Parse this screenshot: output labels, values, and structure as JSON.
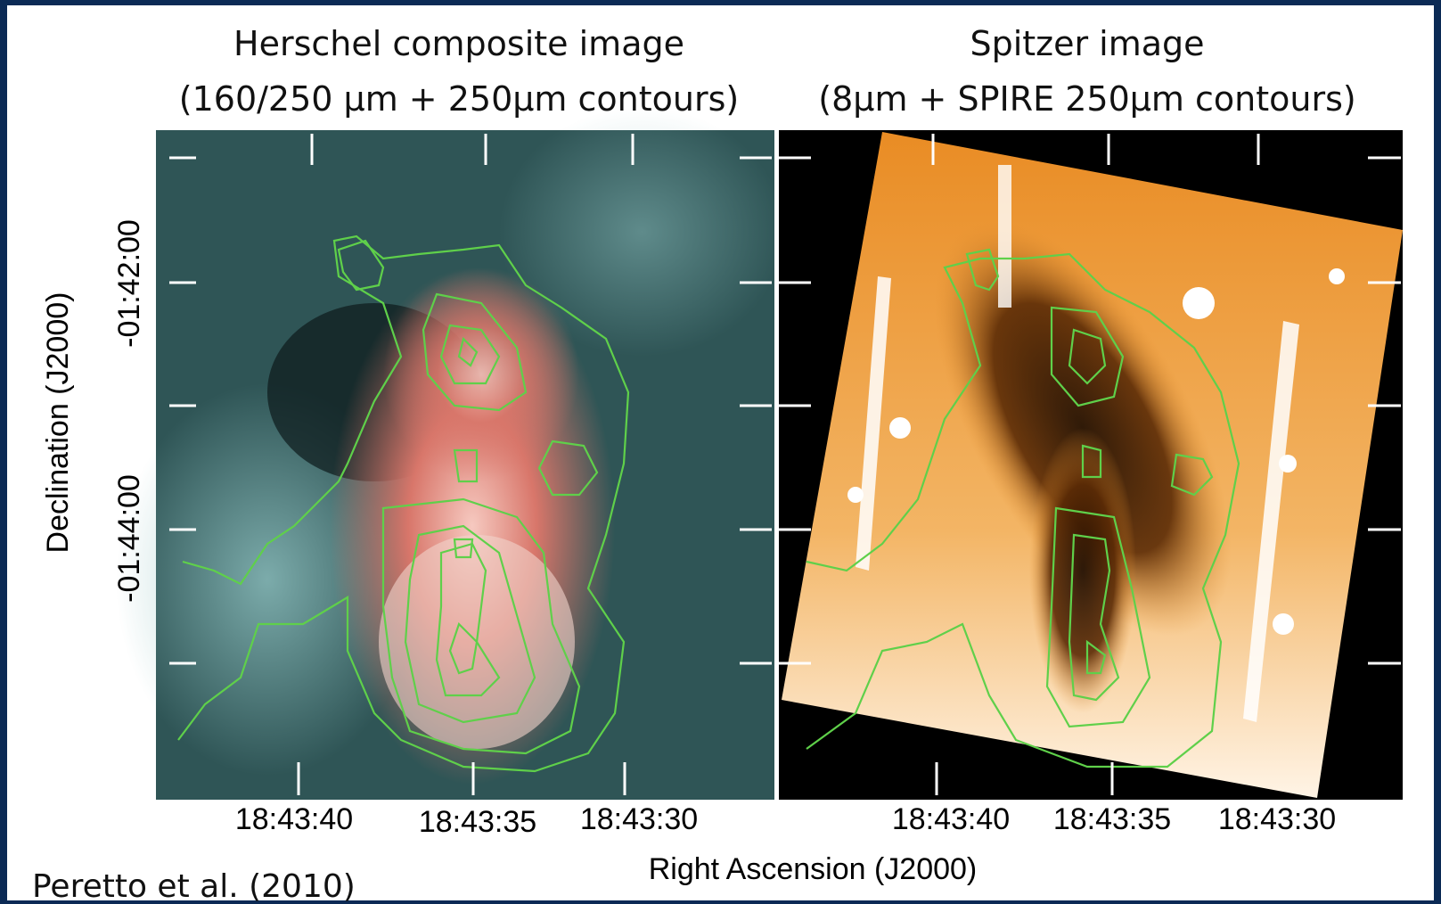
{
  "panels": [
    {
      "title": [
        "Herschel composite image",
        "(160/250 µm + 250µm contours)"
      ],
      "x_ticks": [
        "18:43:40",
        "18:43:35",
        "18:43:30"
      ]
    },
    {
      "title": [
        "Spitzer image",
        "(8µm + SPIRE 250µm contours)"
      ],
      "x_ticks": [
        "18:43:40",
        "18:43:35",
        "18:43:30"
      ]
    }
  ],
  "y_axis": {
    "label": "Declination (J2000)",
    "ticks": [
      "-01:42:00",
      "-01:44:00"
    ]
  },
  "x_axis": {
    "label": "Right Ascension (J2000)"
  },
  "credit": "Peretto et al. (2010)"
}
